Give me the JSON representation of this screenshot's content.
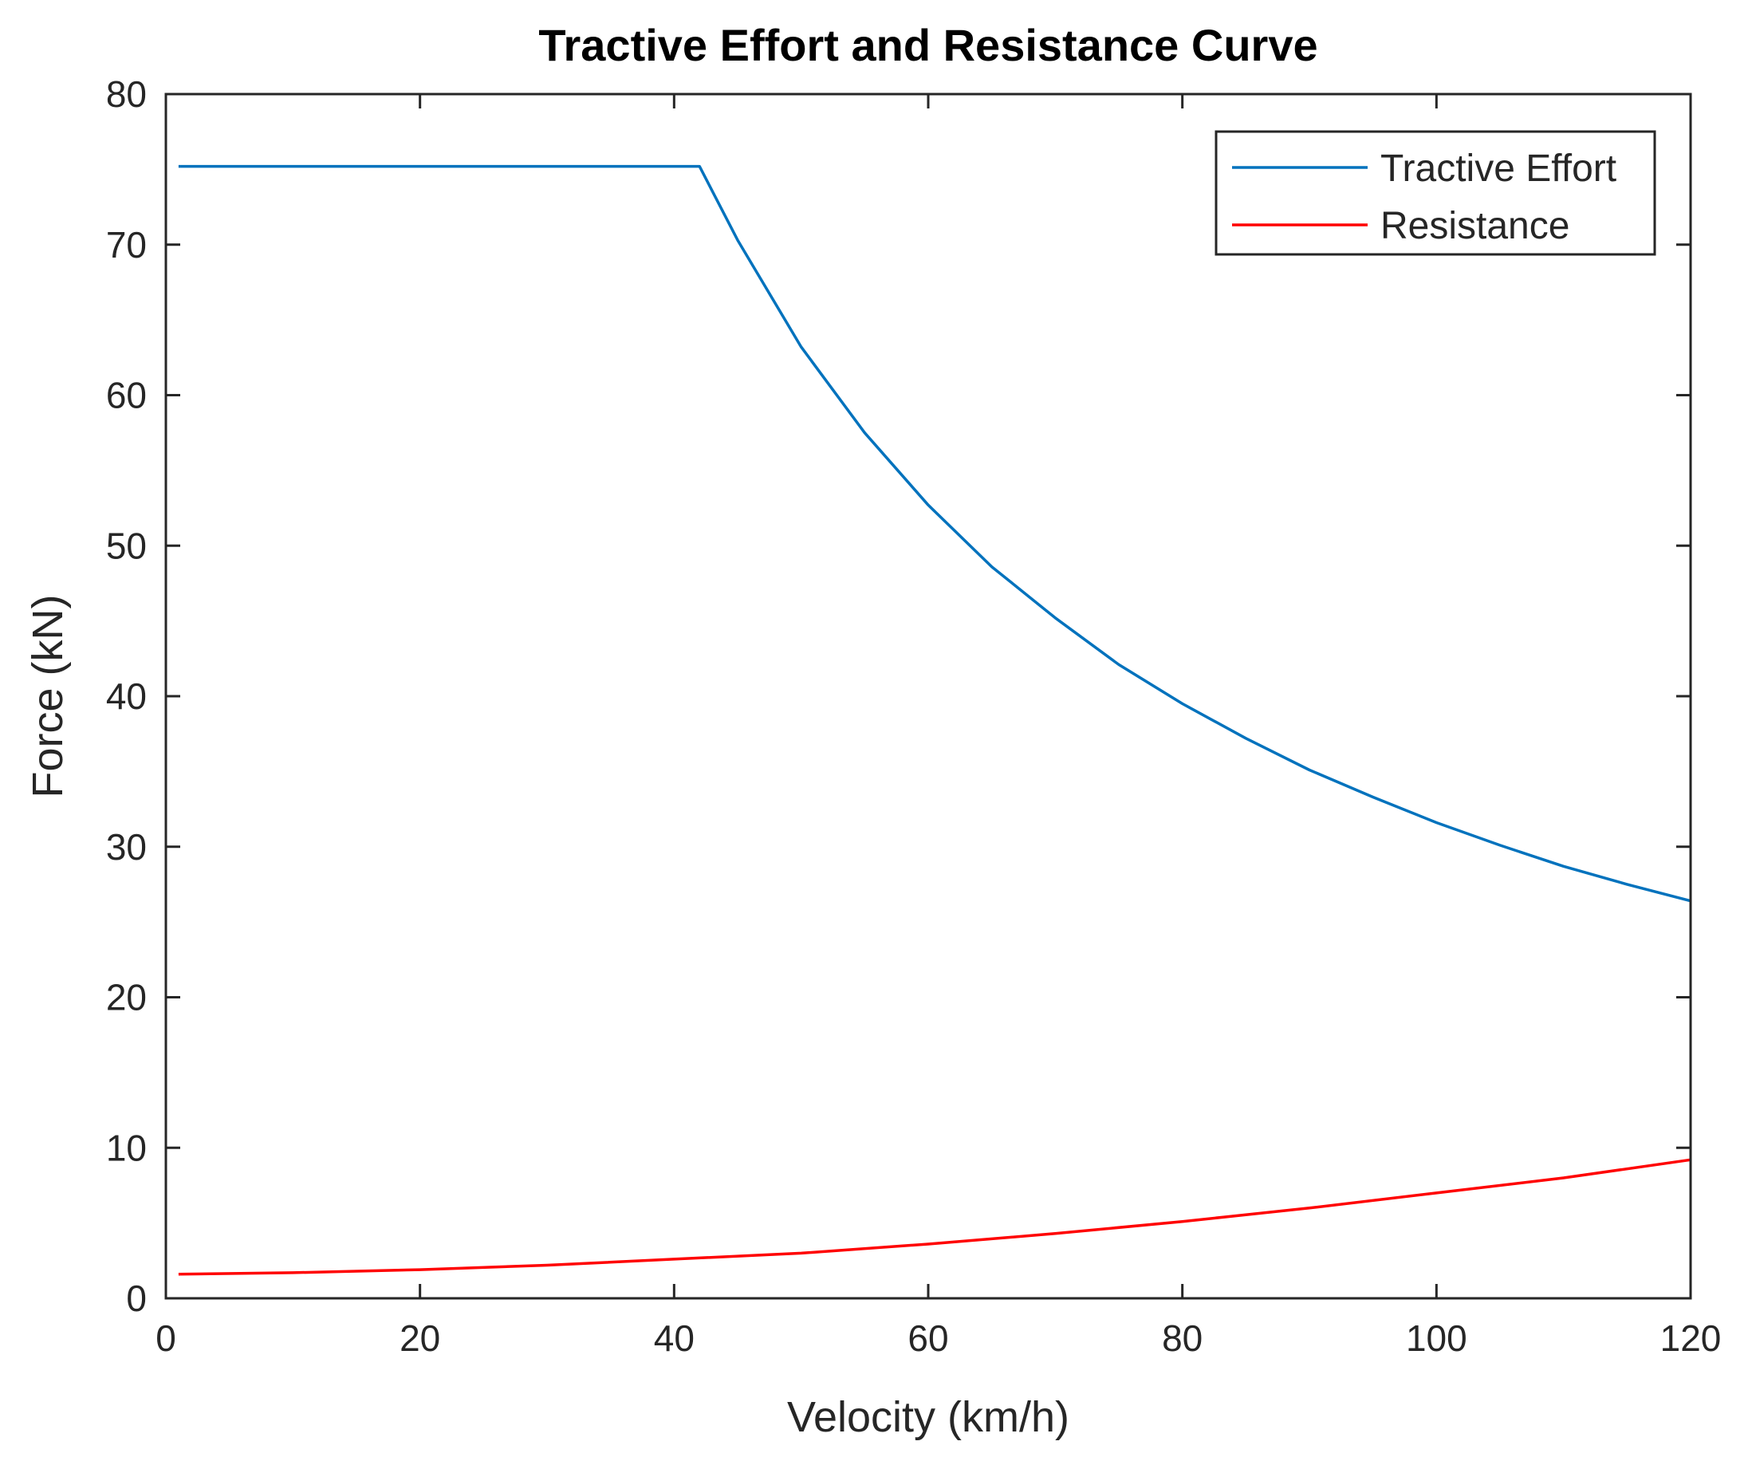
{
  "chart_data": {
    "type": "line",
    "title": "Tractive Effort and Resistance Curve",
    "xlabel": "Velocity (km/h)",
    "ylabel": "Force (kN)",
    "xlim": [
      0,
      120
    ],
    "ylim": [
      0,
      80
    ],
    "xticks": [
      0,
      20,
      40,
      60,
      80,
      100,
      120
    ],
    "yticks": [
      0,
      10,
      20,
      30,
      40,
      50,
      60,
      70,
      80
    ],
    "grid": false,
    "legend_position": "top-right",
    "series": [
      {
        "name": "Tractive Effort",
        "color": "#0072BD",
        "x": [
          1,
          10,
          20,
          30,
          40,
          42,
          45,
          50,
          55,
          60,
          65,
          70,
          75,
          80,
          85,
          90,
          95,
          100,
          105,
          110,
          115,
          120
        ],
        "y": [
          75.2,
          75.2,
          75.2,
          75.2,
          75.2,
          75.2,
          70.3,
          63.2,
          57.5,
          52.7,
          48.6,
          45.2,
          42.1,
          39.5,
          37.2,
          35.1,
          33.3,
          31.6,
          30.1,
          28.7,
          27.5,
          26.4
        ]
      },
      {
        "name": "Resistance",
        "color": "#FF0000",
        "x": [
          1,
          10,
          20,
          30,
          40,
          50,
          60,
          70,
          80,
          90,
          100,
          110,
          120
        ],
        "y": [
          1.6,
          1.7,
          1.9,
          2.2,
          2.6,
          3.0,
          3.6,
          4.3,
          5.1,
          6.0,
          7.0,
          8.0,
          9.2
        ]
      }
    ]
  }
}
